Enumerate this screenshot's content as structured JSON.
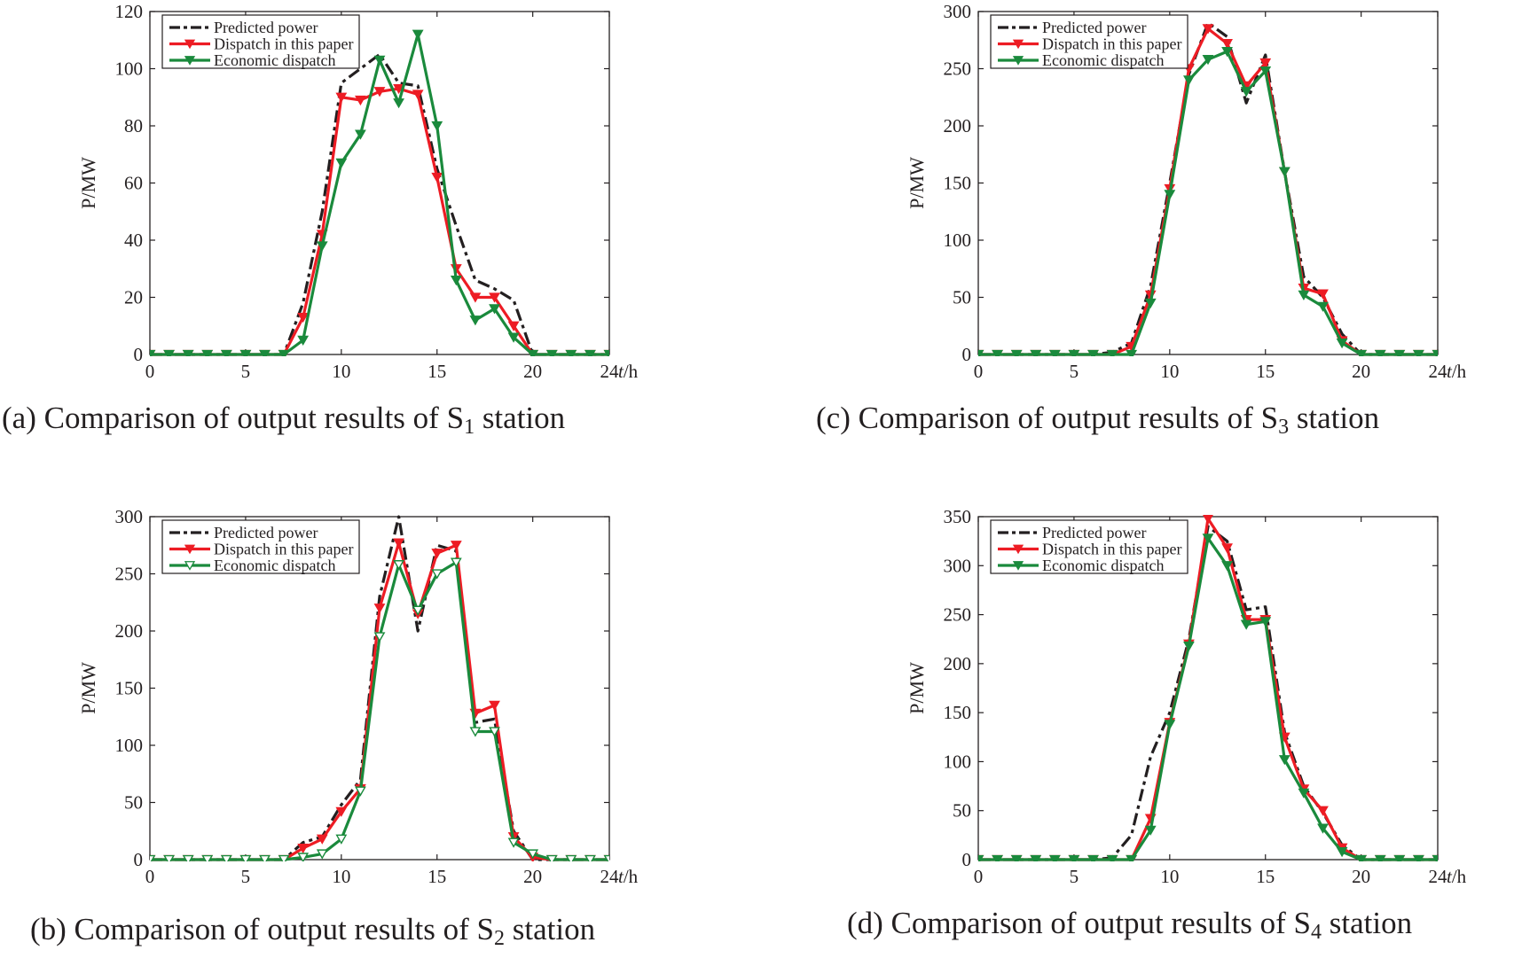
{
  "figure": {
    "colors": {
      "predicted": "#231f20",
      "this_paper": "#ed1c24",
      "economic": "#1a8a3c"
    }
  },
  "chart_data": [
    {
      "id": "a",
      "type": "line",
      "caption": {
        "prefix": "(a) Comparison of output results of S",
        "sub": "1",
        "suffix": " station"
      },
      "xlabel": "t/h",
      "ylabel": "P/MW",
      "xlim": [
        0,
        24
      ],
      "ylim": [
        0,
        120
      ],
      "xticks": [
        0,
        5,
        10,
        15,
        20,
        24
      ],
      "yticks": [
        0,
        20,
        40,
        60,
        80,
        100,
        120
      ],
      "grid": false,
      "legend": "top-left",
      "x": [
        0,
        1,
        2,
        3,
        4,
        5,
        6,
        7,
        8,
        9,
        10,
        11,
        12,
        13,
        14,
        15,
        16,
        17,
        18,
        19,
        20,
        21,
        22,
        23,
        24
      ],
      "series": [
        {
          "name": "Predicted power",
          "style": "dash-dot",
          "marker": "none",
          "values": [
            0,
            0,
            0,
            0,
            0,
            0,
            0,
            0,
            18,
            50,
            95,
            100,
            105,
            95,
            94,
            65,
            45,
            26,
            23,
            19,
            0,
            0,
            0,
            0,
            0
          ]
        },
        {
          "name": "Dispatch in this paper",
          "style": "solid",
          "marker": "filled-triangle-down",
          "values": [
            0,
            0,
            0,
            0,
            0,
            0,
            0,
            0,
            13,
            42,
            90,
            89,
            92,
            93,
            91,
            62,
            30,
            20,
            20,
            10,
            0,
            0,
            0,
            0,
            0
          ]
        },
        {
          "name": "Economic dispatch",
          "style": "solid",
          "marker": "filled-triangle-down",
          "values": [
            0,
            0,
            0,
            0,
            0,
            0,
            0,
            0,
            5,
            38,
            67,
            77,
            103,
            88,
            112,
            80,
            26,
            12,
            16,
            6,
            0,
            0,
            0,
            0,
            0
          ]
        }
      ]
    },
    {
      "id": "b",
      "type": "line",
      "caption": {
        "prefix": "(b) Comparison of output results of S",
        "sub": "2",
        "suffix": " station"
      },
      "xlabel": "t/h",
      "ylabel": "P/MW",
      "xlim": [
        0,
        24
      ],
      "ylim": [
        0,
        300
      ],
      "xticks": [
        0,
        5,
        10,
        15,
        20,
        24
      ],
      "yticks": [
        0,
        50,
        100,
        150,
        200,
        250,
        300
      ],
      "grid": false,
      "legend": "top-left",
      "x": [
        0,
        1,
        2,
        3,
        4,
        5,
        6,
        7,
        8,
        9,
        10,
        11,
        12,
        13,
        14,
        15,
        16,
        17,
        18,
        19,
        20,
        21,
        22,
        23,
        24
      ],
      "series": [
        {
          "name": "Predicted power",
          "style": "dash-dot",
          "marker": "none",
          "values": [
            0,
            0,
            0,
            0,
            0,
            0,
            0,
            0,
            15,
            20,
            48,
            70,
            230,
            300,
            200,
            275,
            270,
            120,
            123,
            25,
            0,
            0,
            0,
            0,
            0
          ]
        },
        {
          "name": "Dispatch in this paper",
          "style": "solid",
          "marker": "filled-triangle-down",
          "values": [
            0,
            0,
            0,
            0,
            0,
            0,
            0,
            0,
            10,
            18,
            42,
            62,
            220,
            277,
            215,
            268,
            275,
            128,
            135,
            20,
            2,
            0,
            0,
            0,
            0
          ]
        },
        {
          "name": "Economic dispatch",
          "style": "solid",
          "marker": "open-triangle-down",
          "values": [
            0,
            0,
            0,
            0,
            0,
            0,
            0,
            0,
            2,
            5,
            18,
            60,
            195,
            258,
            218,
            250,
            260,
            112,
            112,
            15,
            5,
            0,
            0,
            0,
            0
          ]
        }
      ]
    },
    {
      "id": "c",
      "type": "line",
      "caption": {
        "prefix": "(c) Comparison of output results of S",
        "sub": "3",
        "suffix": " station"
      },
      "xlabel": "t/h",
      "ylabel": "P/MW",
      "xlim": [
        0,
        24
      ],
      "ylim": [
        0,
        300
      ],
      "xticks": [
        0,
        5,
        10,
        15,
        20,
        24
      ],
      "yticks": [
        0,
        50,
        100,
        150,
        200,
        250,
        300
      ],
      "grid": false,
      "legend": "top-left",
      "x": [
        0,
        1,
        2,
        3,
        4,
        5,
        6,
        7,
        8,
        9,
        10,
        11,
        12,
        13,
        14,
        15,
        16,
        17,
        18,
        19,
        20,
        21,
        22,
        23,
        24
      ],
      "series": [
        {
          "name": "Predicted power",
          "style": "dash-dot",
          "marker": "none",
          "values": [
            0,
            0,
            0,
            0,
            0,
            0,
            0,
            2,
            10,
            60,
            150,
            245,
            290,
            278,
            220,
            262,
            160,
            68,
            50,
            18,
            0,
            0,
            0,
            0,
            0
          ]
        },
        {
          "name": "Dispatch in this paper",
          "style": "solid",
          "marker": "filled-triangle-down",
          "values": [
            0,
            0,
            0,
            0,
            0,
            0,
            0,
            0,
            7,
            52,
            145,
            250,
            285,
            272,
            235,
            255,
            160,
            58,
            53,
            12,
            0,
            0,
            0,
            0,
            0
          ]
        },
        {
          "name": "Economic dispatch",
          "style": "solid",
          "marker": "filled-triangle-down",
          "values": [
            0,
            0,
            0,
            0,
            0,
            0,
            0,
            0,
            0,
            45,
            140,
            240,
            258,
            265,
            230,
            248,
            160,
            52,
            42,
            10,
            0,
            0,
            0,
            0,
            0
          ]
        }
      ]
    },
    {
      "id": "d",
      "type": "line",
      "caption": {
        "prefix": "(d) Comparison of output results of S",
        "sub": "4",
        "suffix": " station"
      },
      "xlabel": "t/h",
      "ylabel": "P/MW",
      "xlim": [
        0,
        24
      ],
      "ylim": [
        0,
        350
      ],
      "xticks": [
        0,
        5,
        10,
        15,
        20,
        24
      ],
      "yticks": [
        0,
        50,
        100,
        150,
        200,
        250,
        300,
        350
      ],
      "grid": false,
      "legend": "top-left",
      "x": [
        0,
        1,
        2,
        3,
        4,
        5,
        6,
        7,
        8,
        9,
        10,
        11,
        12,
        13,
        14,
        15,
        16,
        17,
        18,
        19,
        20,
        21,
        22,
        23,
        24
      ],
      "series": [
        {
          "name": "Predicted power",
          "style": "dash-dot",
          "marker": "none",
          "values": [
            0,
            0,
            0,
            0,
            0,
            0,
            0,
            2,
            25,
            105,
            150,
            225,
            340,
            325,
            255,
            258,
            130,
            75,
            48,
            15,
            0,
            0,
            0,
            0,
            0
          ]
        },
        {
          "name": "Dispatch in this paper",
          "style": "solid",
          "marker": "filled-triangle-down",
          "values": [
            0,
            0,
            0,
            0,
            0,
            0,
            0,
            0,
            0,
            42,
            140,
            220,
            348,
            318,
            245,
            245,
            125,
            72,
            50,
            12,
            0,
            0,
            0,
            0,
            0
          ]
        },
        {
          "name": "Economic dispatch",
          "style": "solid",
          "marker": "filled-triangle-down",
          "values": [
            0,
            0,
            0,
            0,
            0,
            0,
            0,
            0,
            0,
            30,
            138,
            218,
            328,
            300,
            240,
            243,
            102,
            68,
            32,
            8,
            0,
            0,
            0,
            0,
            0
          ]
        }
      ]
    }
  ]
}
